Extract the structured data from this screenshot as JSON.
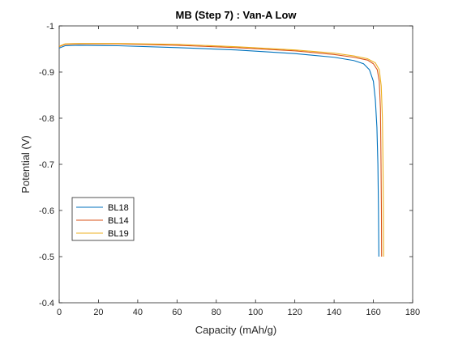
{
  "chart_data": {
    "type": "line",
    "title": "MB (Step 7) : Van-A Low",
    "xlabel": "Capacity (mAh/g)",
    "ylabel": "Potential (V)",
    "xlim": [
      0,
      180
    ],
    "ylim": [
      -1,
      -0.4
    ],
    "y_reversed": true,
    "grid": false,
    "legend_position": "bottom-left",
    "xticks": [
      0,
      20,
      40,
      60,
      80,
      100,
      120,
      140,
      160,
      180
    ],
    "xtick_labels": [
      "0",
      "20",
      "40",
      "60",
      "80",
      "100",
      "120",
      "140",
      "160",
      "180"
    ],
    "yticks": [
      -1,
      -0.9,
      -0.8,
      -0.7,
      -0.6,
      -0.5,
      -0.4
    ],
    "ytick_labels": [
      "-1",
      "-0.9",
      "-0.8",
      "-0.7",
      "-0.6",
      "-0.5",
      "-0.4"
    ],
    "series": [
      {
        "name": "BL18",
        "color": "#0072BD",
        "points": [
          [
            0,
            -0.952
          ],
          [
            3,
            -0.957
          ],
          [
            10,
            -0.958
          ],
          [
            30,
            -0.957
          ],
          [
            60,
            -0.953
          ],
          [
            90,
            -0.948
          ],
          [
            120,
            -0.94
          ],
          [
            140,
            -0.932
          ],
          [
            150,
            -0.925
          ],
          [
            155,
            -0.918
          ],
          [
            158,
            -0.905
          ],
          [
            160,
            -0.88
          ],
          [
            161,
            -0.84
          ],
          [
            161.8,
            -0.78
          ],
          [
            162.3,
            -0.7
          ],
          [
            162.6,
            -0.6
          ],
          [
            162.8,
            -0.5
          ]
        ]
      },
      {
        "name": "BL14",
        "color": "#D95319",
        "points": [
          [
            0,
            -0.955
          ],
          [
            3,
            -0.96
          ],
          [
            10,
            -0.961
          ],
          [
            30,
            -0.961
          ],
          [
            60,
            -0.958
          ],
          [
            90,
            -0.953
          ],
          [
            120,
            -0.946
          ],
          [
            140,
            -0.938
          ],
          [
            150,
            -0.932
          ],
          [
            157,
            -0.926
          ],
          [
            160,
            -0.918
          ],
          [
            162,
            -0.905
          ],
          [
            163,
            -0.88
          ],
          [
            163.6,
            -0.82
          ],
          [
            163.9,
            -0.7
          ],
          [
            164.1,
            -0.6
          ],
          [
            164.2,
            -0.5
          ]
        ]
      },
      {
        "name": "BL19",
        "color": "#EDB120",
        "points": [
          [
            0,
            -0.956
          ],
          [
            3,
            -0.961
          ],
          [
            10,
            -0.962
          ],
          [
            30,
            -0.962
          ],
          [
            60,
            -0.96
          ],
          [
            90,
            -0.955
          ],
          [
            120,
            -0.948
          ],
          [
            140,
            -0.941
          ],
          [
            150,
            -0.935
          ],
          [
            157,
            -0.929
          ],
          [
            161,
            -0.92
          ],
          [
            163,
            -0.905
          ],
          [
            164,
            -0.87
          ],
          [
            164.6,
            -0.8
          ],
          [
            164.9,
            -0.7
          ],
          [
            165.1,
            -0.6
          ],
          [
            165.2,
            -0.5
          ]
        ]
      }
    ]
  }
}
